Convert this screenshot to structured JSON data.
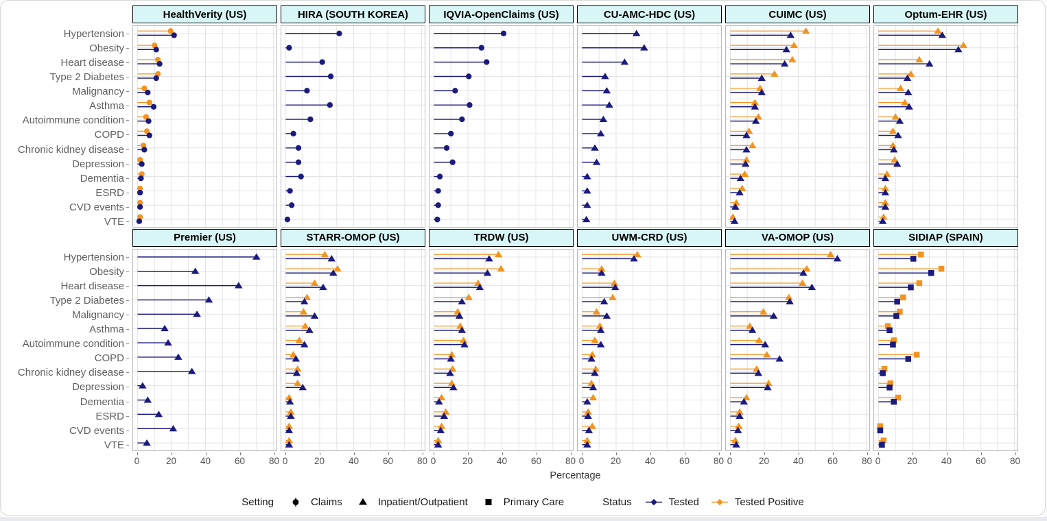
{
  "chart_data": {
    "type": "bar",
    "subtype": "horizontal-lollipop-small-multiples",
    "xlabel": "Percentage",
    "x_ticks": [
      0,
      20,
      40,
      60,
      80
    ],
    "xlim": [
      0,
      82
    ],
    "grid": "on",
    "legend_position": "bottom",
    "categories": [
      "Hypertension",
      "Obesity",
      "Heart disease",
      "Type 2 Diabetes",
      "Malignancy",
      "Asthma",
      "Autoimmune condition",
      "COPD",
      "Chronic kidney disease",
      "Depression",
      "Dementia",
      "ESRD",
      "CVD events",
      "VTE"
    ],
    "status_series": [
      "Tested",
      "Tested Positive"
    ],
    "colors": {
      "tested": "#1b1a7e",
      "tested_positive": "#f2941f",
      "header_bg": "#d9f6f7",
      "panel_border": "#b9b9b9",
      "gridline": "#e4e4e4",
      "label_text": "#5f5f5f"
    },
    "panels": [
      {
        "title": "HealthVerity (US)",
        "setting": "Claims",
        "marker": "circle",
        "tested": [
          21.5,
          11,
          13,
          11,
          6,
          9.5,
          6.5,
          7,
          4,
          2.5,
          2,
          1.5,
          1.5,
          1
        ],
        "tested_positive": [
          19.5,
          10,
          12,
          12,
          4,
          7,
          5,
          5.5,
          3.5,
          1.5,
          2.5,
          1.5,
          1.5,
          1.5
        ]
      },
      {
        "title": "HIRA (SOUTH KOREA)",
        "setting": "Claims",
        "marker": "circle",
        "tested": [
          31.5,
          2,
          21.5,
          26.5,
          12.5,
          26,
          14.5,
          4.5,
          7.5,
          7.5,
          9,
          2.5,
          3.5,
          1
        ],
        "tested_positive": null
      },
      {
        "title": "IQVIA-OpenClaims (US)",
        "setting": "Claims",
        "marker": "circle",
        "tested": [
          41,
          28,
          31,
          20.5,
          12.5,
          21,
          16.5,
          10,
          7.5,
          11,
          3.5,
          2.5,
          2.5,
          2
        ],
        "tested_positive": null
      },
      {
        "title": "CU-AMC-HDC (US)",
        "setting": "Inpatient/Outpatient",
        "marker": "triangle",
        "tested": [
          32,
          36.5,
          25,
          13.5,
          14.5,
          16,
          12.5,
          11,
          7.5,
          8.5,
          3,
          3,
          3,
          2.5
        ],
        "tested_positive": null
      },
      {
        "title": "CUIMC (US)",
        "setting": "Inpatient/Outpatient",
        "marker": "triangle",
        "tested": [
          35.5,
          33,
          32,
          18.5,
          18.5,
          14.5,
          15,
          9.5,
          9.5,
          9,
          6,
          5.5,
          3,
          2.5
        ],
        "tested_positive": [
          44.5,
          37.5,
          36.5,
          26,
          17.5,
          14.5,
          16.5,
          11,
          13,
          9.5,
          8.5,
          7,
          3.5,
          1.5
        ]
      },
      {
        "title": "Optum-EHR (US)",
        "setting": "Inpatient/Outpatient",
        "marker": "triangle",
        "tested": [
          37.5,
          47,
          30,
          17,
          17.5,
          18,
          12.5,
          11.5,
          9,
          11,
          4,
          4,
          4,
          2.5
        ],
        "tested_positive": [
          35,
          50,
          24,
          19,
          13,
          15.5,
          10,
          8.5,
          8.5,
          9.5,
          5,
          4,
          4,
          3
        ]
      },
      {
        "title": "Premier (US)",
        "setting": "Inpatient/Outpatient",
        "marker": "triangle",
        "tested": [
          70,
          34,
          59.5,
          42,
          35,
          16,
          18,
          24,
          32,
          3,
          6,
          12.5,
          21,
          5.5
        ],
        "tested_positive": null
      },
      {
        "title": "STARR-OMOP (US)",
        "setting": "Inpatient/Outpatient",
        "marker": "triangle",
        "tested": [
          27,
          28,
          22,
          11,
          17,
          14,
          11,
          6,
          6.5,
          10,
          2.5,
          3,
          2,
          2
        ],
        "tested_positive": [
          23,
          30.5,
          17,
          12.5,
          10.5,
          11.5,
          8,
          4.5,
          7,
          7,
          2,
          3,
          2,
          2
        ]
      },
      {
        "title": "TRDW (US)",
        "setting": "Inpatient/Outpatient",
        "marker": "triangle",
        "tested": [
          32.5,
          31.5,
          27,
          16.5,
          15,
          16.5,
          18,
          10,
          9.5,
          11.5,
          3,
          6,
          4,
          2.5
        ],
        "tested_positive": [
          38,
          39.5,
          26,
          20.5,
          14,
          15.5,
          17.5,
          10.5,
          11,
          10.5,
          4.5,
          7,
          4.5,
          2.5
        ]
      },
      {
        "title": "UWM-CRD (US)",
        "setting": "Inpatient/Outpatient",
        "marker": "triangle",
        "tested": [
          30.5,
          11.5,
          19.5,
          13,
          14.5,
          11,
          11,
          5.5,
          7.5,
          6.5,
          3,
          3.5,
          4,
          3
        ],
        "tested_positive": [
          32.5,
          11.5,
          19,
          18,
          8.5,
          10.5,
          7.5,
          6,
          8,
          5.5,
          6.5,
          3.5,
          6,
          3
        ]
      },
      {
        "title": "VA-OMOP (US)",
        "setting": "Inpatient/Outpatient",
        "marker": "triangle",
        "tested": [
          63,
          43,
          48,
          35,
          25.5,
          13,
          20.5,
          29,
          16.5,
          22,
          8,
          5.5,
          4.5,
          3.5
        ],
        "tested_positive": [
          59,
          45,
          42.5,
          34.5,
          19.5,
          11.5,
          17,
          21.5,
          15.5,
          22.5,
          9.5,
          5.5,
          5,
          3
        ]
      },
      {
        "title": "SIDIAP (SPAIN)",
        "setting": "Primary Care",
        "marker": "square",
        "tested": [
          20.5,
          31,
          19,
          11,
          10.5,
          6.5,
          8.5,
          17.5,
          2.5,
          6.5,
          9,
          null,
          1,
          2
        ],
        "tested_positive": [
          25,
          37,
          24,
          14.5,
          12.5,
          5.5,
          9,
          22.5,
          3.5,
          7,
          11.5,
          null,
          1,
          3
        ]
      }
    ],
    "legend": {
      "setting_label": "Setting",
      "setting_items": [
        {
          "label": "Claims",
          "marker": "circle"
        },
        {
          "label": "Inpatient/Outpatient",
          "marker": "triangle"
        },
        {
          "label": "Primary Care",
          "marker": "square"
        }
      ],
      "status_label": "Status",
      "status_items": [
        {
          "label": "Tested",
          "color": "#1b1a7e"
        },
        {
          "label": "Tested Positive",
          "color": "#f2941f"
        }
      ]
    }
  }
}
